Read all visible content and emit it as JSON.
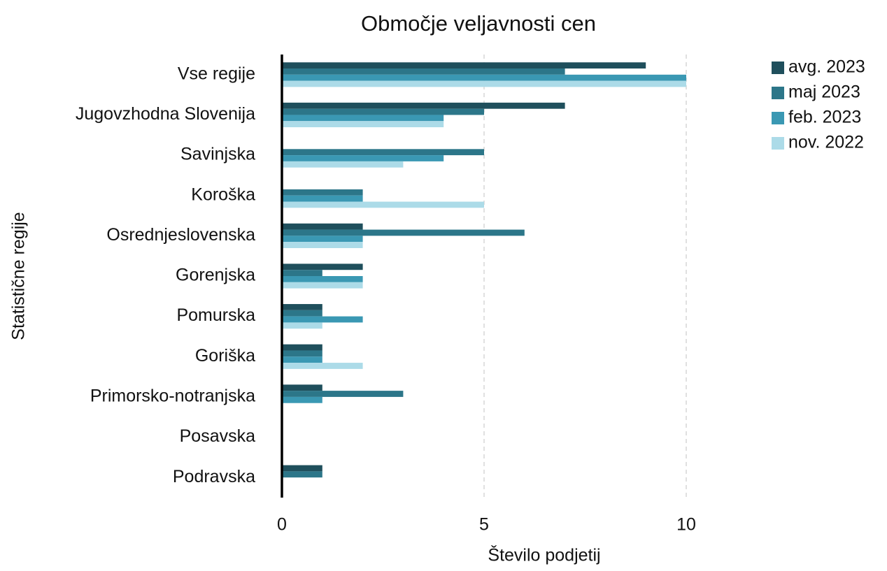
{
  "chart_data": {
    "type": "hbar",
    "title": "Območje veljavnosti cen",
    "x_label": "Število podjetij",
    "y_label": "Statistične regije",
    "categories": [
      "Vse regije",
      "Jugovzhodna Slovenija",
      "Savinjska",
      "Koroška",
      "Osrednjeslovenska",
      "Gorenjska",
      "Pomurska",
      "Goriška",
      "Primorsko-notranjska",
      "Posavska",
      "Podravska"
    ],
    "series": [
      {
        "name": "avg. 2023",
        "color": "#1f4f5c",
        "values": [
          9,
          7,
          0,
          0,
          2,
          2,
          1,
          1,
          1,
          0,
          1
        ]
      },
      {
        "name": "maj 2023",
        "color": "#2c7689",
        "values": [
          7,
          5,
          5,
          2,
          6,
          1,
          1,
          1,
          3,
          0,
          1
        ]
      },
      {
        "name": "feb. 2023",
        "color": "#3a98b3",
        "values": [
          10,
          4,
          4,
          2,
          2,
          2,
          2,
          1,
          1,
          0,
          0
        ]
      },
      {
        "name": "nov. 2022",
        "color": "#acdbe8",
        "values": [
          10,
          4,
          3,
          5,
          2,
          2,
          1,
          2,
          0,
          0,
          0
        ]
      }
    ],
    "xlim": [
      0,
      12
    ],
    "xticks": [
      0,
      5,
      10
    ],
    "grid": true
  }
}
